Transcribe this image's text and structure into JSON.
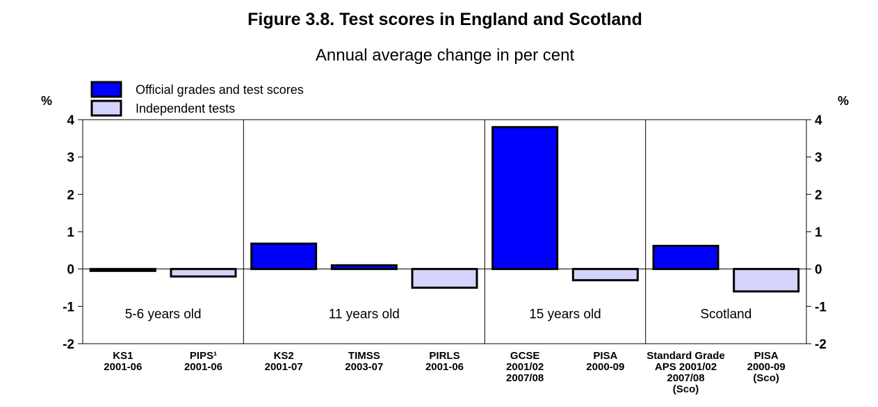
{
  "colors": {
    "official": "#0000ff",
    "independent": "#d4d4fc",
    "outline": "#000000",
    "background": "#ffffff"
  },
  "chart_data": {
    "type": "bar",
    "title": "Figure 3.8.  Test scores in England and Scotland",
    "subtitle": "Annual average change in per cent",
    "unit_left": "%",
    "unit_right": "%",
    "ylim": [
      -2,
      4
    ],
    "yticks": [
      4,
      3,
      2,
      1,
      0,
      -1,
      -2
    ],
    "ytick_labels": [
      "4",
      "3",
      "2",
      "1",
      "0",
      "-1",
      "-2"
    ],
    "legend": [
      {
        "name": "Official grades and test scores",
        "color_key": "official"
      },
      {
        "name": "Independent tests",
        "color_key": "independent"
      }
    ],
    "legend_position": "top-left",
    "groups": [
      {
        "label": "5-6 years old",
        "start": 0,
        "end": 2
      },
      {
        "label": "11 years old",
        "start": 2,
        "end": 5
      },
      {
        "label": "15 years old",
        "start": 5,
        "end": 7
      },
      {
        "label": "Scotland",
        "start": 7,
        "end": 9
      }
    ],
    "categories": [
      {
        "label": [
          "KS1",
          "2001-06"
        ],
        "value": -0.05,
        "series": "official"
      },
      {
        "label": [
          "PIPS¹",
          "2001-06"
        ],
        "value": -0.2,
        "series": "independent"
      },
      {
        "label": [
          "KS2",
          "2001-07"
        ],
        "value": 0.68,
        "series": "official"
      },
      {
        "label": [
          "TIMSS",
          "2003-07"
        ],
        "value": 0.1,
        "series": "official"
      },
      {
        "label": [
          "PIRLS",
          "2001-06"
        ],
        "value": -0.5,
        "series": "independent"
      },
      {
        "label": [
          "GCSE",
          "2001/02",
          "2007/08"
        ],
        "value": 3.8,
        "series": "official"
      },
      {
        "label": [
          "PISA",
          "2000-09"
        ],
        "value": -0.3,
        "series": "independent"
      },
      {
        "label": [
          "Standard Grade",
          "APS 2001/02",
          "2007/08",
          "(Sco)"
        ],
        "value": 0.62,
        "series": "official"
      },
      {
        "label": [
          "PISA",
          "2000-09",
          "(Sco)"
        ],
        "value": -0.6,
        "series": "independent"
      }
    ]
  }
}
